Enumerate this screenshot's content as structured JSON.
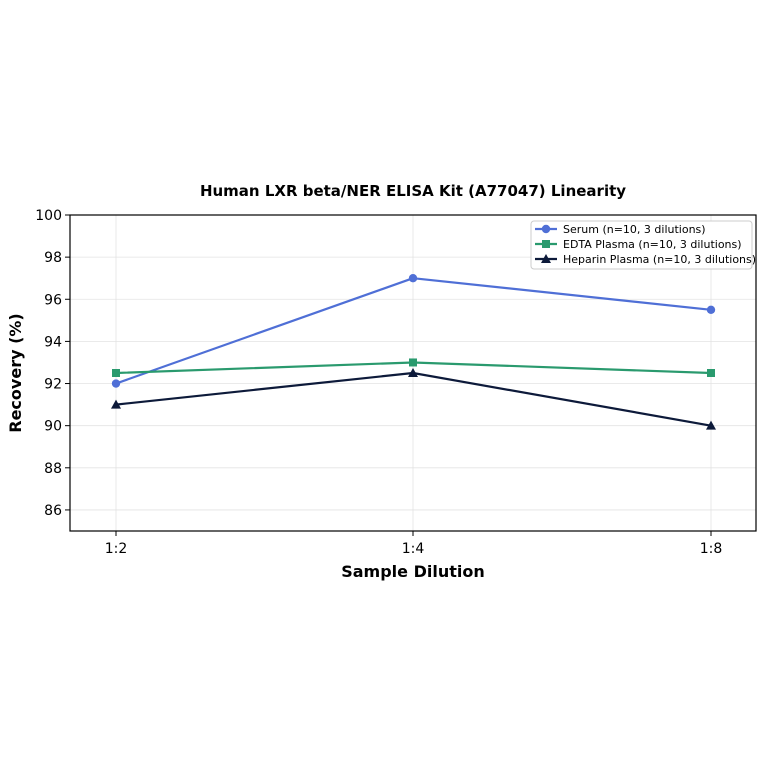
{
  "chart_data": {
    "type": "line",
    "title": "Human LXR beta/NER ELISA Kit (A77047) Linearity",
    "xlabel": "Sample Dilution",
    "ylabel": "Recovery (%)",
    "categories": [
      "1:2",
      "1:4",
      "1:8"
    ],
    "ylim": [
      85,
      100
    ],
    "yticks": [
      "86",
      "88",
      "90",
      "92",
      "94",
      "96",
      "98",
      "100"
    ],
    "grid": true,
    "legend_position": "top-right",
    "series": [
      {
        "name": "Serum (n=10, 3 dilutions)",
        "values": [
          92,
          97,
          95.5
        ],
        "color": "#4f6fd6",
        "marker": "circle"
      },
      {
        "name": "EDTA Plasma (n=10, 3 dilutions)",
        "values": [
          92.5,
          93,
          92.5
        ],
        "color": "#2a9a6e",
        "marker": "square"
      },
      {
        "name": "Heparin Plasma (n=10, 3 dilutions)",
        "values": [
          91,
          92.5,
          90
        ],
        "color": "#0d1a3a",
        "marker": "triangle"
      }
    ]
  }
}
